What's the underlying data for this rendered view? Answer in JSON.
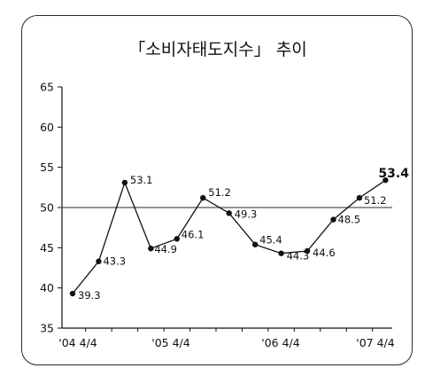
{
  "chart_data": {
    "type": "line",
    "title": "「소비자태도지수」 추이",
    "xlabel": "",
    "ylabel": "",
    "ylim": [
      35,
      65
    ],
    "yticks": [
      35,
      40,
      45,
      50,
      55,
      60,
      65
    ],
    "reference_line": 50,
    "grid": false,
    "x_tick_labels": [
      "'04 4/4",
      "'05 4/4",
      "'06 4/4",
      "'07 4/4"
    ],
    "series": [
      {
        "values": [
          39.3,
          43.3,
          53.1,
          44.9,
          46.1,
          51.2,
          49.3,
          45.4,
          44.3,
          44.6,
          48.5,
          51.2,
          53.4
        ],
        "value_labels": [
          "39.3",
          "43.3",
          "53.1",
          "44.9",
          "46.1",
          "51.2",
          "49.3",
          "45.4",
          "44.3",
          "44.6",
          "48.5",
          "51.2",
          "53.4"
        ]
      }
    ]
  }
}
